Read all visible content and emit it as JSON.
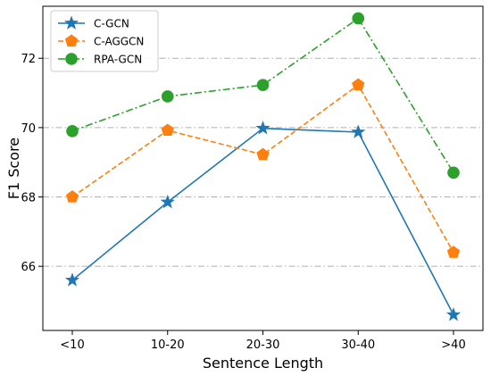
{
  "chart_data": {
    "type": "line",
    "xlabel": "Sentence Length",
    "ylabel": "F1 Score",
    "categories": [
      "<10",
      "10-20",
      "20-30",
      "30-40",
      ">40"
    ],
    "yticks": [
      66,
      68,
      70,
      72
    ],
    "ylim": [
      64.15,
      73.5
    ],
    "grid": "horizontal dash-dot",
    "legend_position": "top-left",
    "series": [
      {
        "name": "C-GCN",
        "values": [
          65.6,
          67.85,
          69.98,
          69.87,
          64.6
        ],
        "color": "#1f77b4",
        "marker": "star",
        "line_style": "solid"
      },
      {
        "name": "C-AGGCN",
        "values": [
          68.0,
          69.92,
          69.22,
          71.23,
          66.4
        ],
        "color": "#ff7f0e",
        "marker": "pentagon",
        "line_style": "dashed"
      },
      {
        "name": "RPA-GCN",
        "values": [
          69.9,
          70.9,
          71.23,
          73.15,
          68.7
        ],
        "color": "#2ca02c",
        "marker": "circle",
        "line_style": "dash-dot"
      }
    ]
  }
}
